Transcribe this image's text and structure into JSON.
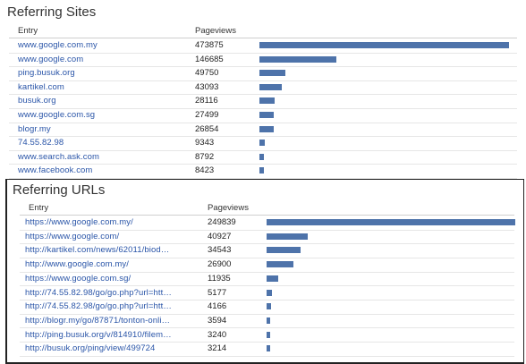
{
  "sites": {
    "title": "Referring Sites",
    "col_entry": "Entry",
    "col_pageviews": "Pageviews",
    "rows": [
      {
        "entry": "www.google.com.my",
        "pageviews": "473875",
        "value": 473875
      },
      {
        "entry": "www.google.com",
        "pageviews": "146685",
        "value": 146685
      },
      {
        "entry": "ping.busuk.org",
        "pageviews": "49750",
        "value": 49750
      },
      {
        "entry": "kartikel.com",
        "pageviews": "43093",
        "value": 43093
      },
      {
        "entry": "busuk.org",
        "pageviews": "28116",
        "value": 28116
      },
      {
        "entry": "www.google.com.sg",
        "pageviews": "27499",
        "value": 27499
      },
      {
        "entry": "blogr.my",
        "pageviews": "26854",
        "value": 26854
      },
      {
        "entry": "74.55.82.98",
        "pageviews": "9343",
        "value": 9343
      },
      {
        "entry": "www.search.ask.com",
        "pageviews": "8792",
        "value": 8792
      },
      {
        "entry": "www.facebook.com",
        "pageviews": "8423",
        "value": 8423
      }
    ]
  },
  "urls": {
    "title": "Referring URLs",
    "col_entry": "Entry",
    "col_pageviews": "Pageviews",
    "rows": [
      {
        "entry": "https://www.google.com.my/",
        "pageviews": "249839",
        "value": 249839
      },
      {
        "entry": "https://www.google.com/",
        "pageviews": "40927",
        "value": 40927
      },
      {
        "entry": "http://kartikel.com/news/62011/biod…",
        "pageviews": "34543",
        "value": 34543
      },
      {
        "entry": "http://www.google.com.my/",
        "pageviews": "26900",
        "value": 26900
      },
      {
        "entry": "https://www.google.com.sg/",
        "pageviews": "11935",
        "value": 11935
      },
      {
        "entry": "http://74.55.82.98/go/go.php?url=htt…",
        "pageviews": "5177",
        "value": 5177
      },
      {
        "entry": "http://74.55.82.98/go/go.php?url=htt…",
        "pageviews": "4166",
        "value": 4166
      },
      {
        "entry": "http://blogr.my/go/87871/tonton-onli…",
        "pageviews": "3594",
        "value": 3594
      },
      {
        "entry": "http://ping.busuk.org/v/814910/filem…",
        "pageviews": "3240",
        "value": 3240
      },
      {
        "entry": "http://busuk.org/ping/view/499724",
        "pageviews": "3214",
        "value": 3214
      }
    ]
  },
  "colors": {
    "bar": "#4e73aa",
    "link": "#2a55a8"
  }
}
